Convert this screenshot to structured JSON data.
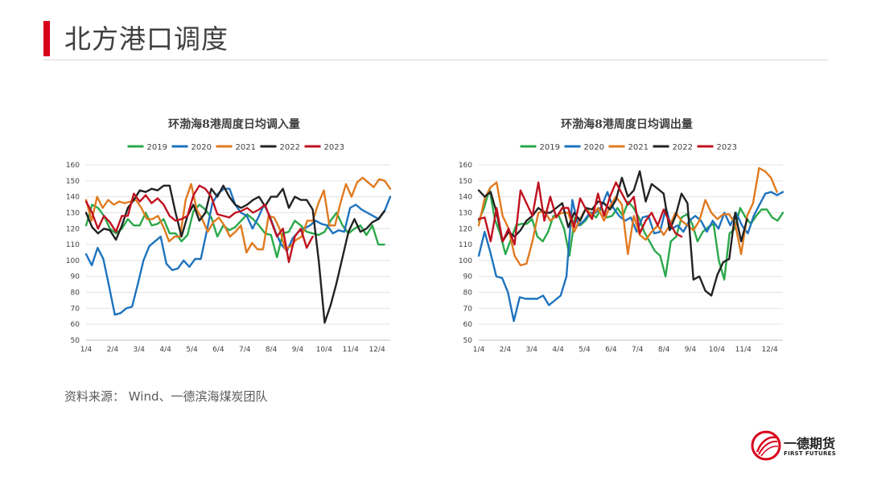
{
  "slide": {
    "title": "北方港口调度",
    "source": "资料来源：  Wind、一德滨海煤炭团队"
  },
  "logo": {
    "name_cn": "一德期货",
    "name_en": "FIRST FUTURES"
  },
  "colors": {
    "accent": "#d9001b"
  },
  "chart_data": [
    {
      "type": "line",
      "title": "环渤海8港周度日均调入量",
      "xlabel": "",
      "ylabel": "",
      "ylim": [
        50,
        160
      ],
      "yticks": [
        50,
        60,
        70,
        80,
        90,
        100,
        110,
        120,
        130,
        140,
        150,
        160
      ],
      "x_ticks": [
        "1/4",
        "2/4",
        "3/4",
        "4/4",
        "5/4",
        "6/4",
        "7/4",
        "8/4",
        "9/4",
        "10/4",
        "11/4",
        "12/4"
      ],
      "x_unit": "week",
      "grid": "horizontal",
      "legend": "top",
      "series": [
        {
          "name": "2019",
          "color": "#2aa84a",
          "values": [
            122,
            135,
            133,
            128,
            120,
            117,
            120,
            126,
            122,
            122,
            130,
            122,
            123,
            126,
            117,
            117,
            112,
            116,
            131,
            135,
            132,
            127,
            115,
            122,
            119,
            121,
            125,
            129,
            126,
            122,
            117,
            116,
            102,
            117,
            118,
            125,
            122,
            118,
            117,
            116,
            118,
            125,
            130,
            122,
            117,
            120,
            122,
            116,
            122,
            110,
            110
          ]
        },
        {
          "name": "2020",
          "color": "#1e73be",
          "values": [
            104,
            97,
            108,
            101,
            84,
            66,
            67,
            70,
            71,
            85,
            100,
            109,
            112,
            115,
            98,
            94,
            95,
            100,
            96,
            101,
            101,
            118,
            136,
            142,
            145,
            145,
            135,
            130,
            128,
            120,
            127,
            135,
            128,
            118,
            110,
            106,
            114,
            118,
            120,
            122,
            125,
            123,
            122,
            117,
            119,
            118,
            133,
            135,
            132,
            130,
            128,
            126,
            131,
            140
          ]
        },
        {
          "name": "2021",
          "color": "#e07a1f",
          "values": [
            138,
            125,
            140,
            133,
            138,
            135,
            137,
            136,
            137,
            138,
            133,
            126,
            126,
            128,
            121,
            112,
            115,
            115,
            138,
            148,
            132,
            126,
            118,
            124,
            127,
            122,
            115,
            118,
            122,
            105,
            111,
            107,
            107,
            128,
            127,
            120,
            107,
            109,
            113,
            115,
            125,
            125,
            136,
            144,
            122,
            122,
            136,
            148,
            140,
            149,
            152,
            149,
            146,
            151,
            150,
            145
          ]
        },
        {
          "name": "2022",
          "color": "#222222",
          "values": [
            130,
            121,
            117,
            120,
            119,
            113,
            122,
            133,
            138,
            144,
            143,
            145,
            144,
            147,
            147,
            130,
            115,
            128,
            135,
            125,
            130,
            145,
            140,
            147,
            140,
            135,
            133,
            135,
            138,
            140,
            134,
            140,
            140,
            145,
            133,
            140,
            138,
            138,
            132,
            100,
            61,
            72,
            86,
            102,
            118,
            126,
            118,
            120,
            124,
            126,
            131
          ]
        },
        {
          "name": "2023",
          "color": "#c0111f",
          "values": [
            137,
            130,
            120,
            128,
            124,
            118,
            128,
            128,
            142,
            137,
            141,
            136,
            139,
            135,
            128,
            125,
            126,
            128,
            141,
            147,
            145,
            140,
            129,
            128,
            127,
            130,
            131,
            133,
            130,
            132,
            135,
            125,
            115,
            120,
            99,
            115,
            120,
            108,
            115
          ]
        }
      ]
    },
    {
      "type": "line",
      "title": "环渤海8港周度日均调出量",
      "xlabel": "",
      "ylabel": "",
      "ylim": [
        50,
        160
      ],
      "yticks": [
        50,
        60,
        70,
        80,
        90,
        100,
        110,
        120,
        130,
        140,
        150,
        160
      ],
      "x_ticks": [
        "1/4",
        "2/4",
        "3/4",
        "4/4",
        "5/4",
        "6/4",
        "7/4",
        "8/4",
        "9/4",
        "10/4",
        "11/4",
        "12/4"
      ],
      "x_unit": "week",
      "grid": "horizontal",
      "legend": "top",
      "series": [
        {
          "name": "2019",
          "color": "#2aa84a",
          "values": [
            125,
            133,
            145,
            126,
            117,
            104,
            113,
            122,
            123,
            123,
            126,
            115,
            112,
            118,
            128,
            128,
            120,
            103,
            127,
            122,
            125,
            130,
            127,
            133,
            127,
            128,
            133,
            128,
            137,
            133,
            127,
            118,
            112,
            106,
            103,
            90,
            112,
            115,
            127,
            129,
            123,
            112,
            118,
            121,
            123,
            100,
            88,
            117,
            120,
            133,
            127,
            123,
            128,
            132,
            132,
            127,
            125,
            130
          ]
        },
        {
          "name": "2020",
          "color": "#1e73be",
          "values": [
            103,
            118,
            105,
            90,
            89,
            80,
            62,
            77,
            76,
            76,
            76,
            78,
            72,
            75,
            78,
            90,
            138,
            122,
            125,
            130,
            130,
            134,
            143,
            133,
            128,
            125,
            127,
            118,
            127,
            128,
            117,
            118,
            133,
            120,
            122,
            118,
            125,
            128,
            125,
            118,
            125,
            120,
            130,
            122,
            130,
            122,
            117,
            128,
            135,
            142,
            143,
            141,
            143
          ]
        },
        {
          "name": "2021",
          "color": "#e07a1f",
          "values": [
            122,
            139,
            146,
            149,
            128,
            120,
            103,
            97,
            98,
            112,
            130,
            131,
            125,
            128,
            130,
            130,
            118,
            126,
            133,
            128,
            133,
            125,
            134,
            140,
            135,
            104,
            128,
            116,
            113,
            118,
            122,
            116,
            122,
            130,
            125,
            122,
            119,
            125,
            138,
            130,
            126,
            129,
            129,
            123,
            104,
            128,
            136,
            158,
            156,
            152,
            143
          ]
        },
        {
          "name": "2022",
          "color": "#222222",
          "values": [
            144,
            140,
            143,
            130,
            112,
            118,
            115,
            119,
            125,
            128,
            133,
            130,
            130,
            133,
            136,
            121,
            130,
            125,
            133,
            132,
            137,
            136,
            132,
            138,
            152,
            140,
            144,
            156,
            137,
            148,
            145,
            142,
            119,
            128,
            142,
            136,
            88,
            90,
            81,
            78,
            91,
            99,
            101,
            130,
            112,
            126
          ]
        },
        {
          "name": "2023",
          "color": "#c0111f",
          "values": [
            126,
            127,
            112,
            133,
            112,
            120,
            110,
            144,
            136,
            128,
            149,
            125,
            140,
            127,
            133,
            133,
            121,
            139,
            132,
            126,
            142,
            128,
            140,
            149,
            142,
            135,
            140,
            117,
            125,
            130,
            122,
            132,
            124,
            117,
            115
          ]
        }
      ]
    }
  ]
}
